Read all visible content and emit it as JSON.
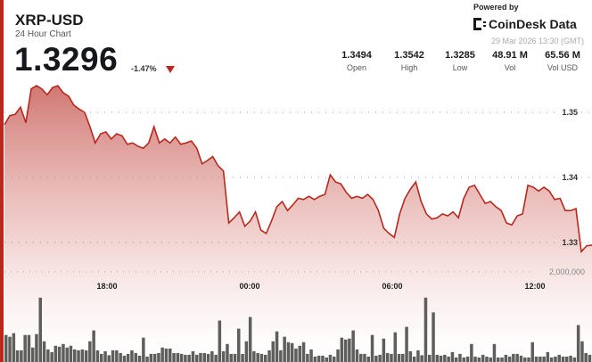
{
  "header": {
    "title": "XRP-USD",
    "subtitle": "24 Hour Chart",
    "price": "1.3296",
    "change": "-1.47%",
    "direction": "down"
  },
  "branding": {
    "powered_by": "Powered by",
    "name": "CoinDesk Data",
    "timestamp": "29 Mar 2026 13:30 (GMT)"
  },
  "stats": [
    {
      "value": "1.3494",
      "label": "Open"
    },
    {
      "value": "1.3542",
      "label": "High"
    },
    {
      "value": "1.3285",
      "label": "Low"
    },
    {
      "value": "48.91 M",
      "label": "Vol"
    },
    {
      "value": "65.56 M",
      "label": "Vol USD"
    }
  ],
  "colors": {
    "accent": "#b8281d",
    "line": "#b8281d",
    "fill_top": "#c9605a",
    "volume": "#5e5e5a"
  },
  "chart_data": {
    "type": "area",
    "x_ticks": [
      "18:00",
      "00:00",
      "06:00",
      "12:00"
    ],
    "y_ticks": [
      1.35,
      1.34,
      1.33
    ],
    "ylim": [
      1.3248,
      1.3672
    ],
    "grid": true,
    "price": [
      1.3481,
      1.3495,
      1.3497,
      1.3508,
      1.3484,
      1.3536,
      1.3541,
      1.3536,
      1.3527,
      1.3538,
      1.3541,
      1.353,
      1.3525,
      1.3511,
      1.3505,
      1.35,
      1.3478,
      1.3453,
      1.3467,
      1.347,
      1.3459,
      1.3467,
      1.3464,
      1.3451,
      1.3453,
      1.3448,
      1.3445,
      1.3453,
      1.3478,
      1.3453,
      1.3459,
      1.3453,
      1.3462,
      1.3451,
      1.3453,
      1.3456,
      1.3445,
      1.3421,
      1.3426,
      1.3432,
      1.3418,
      1.341,
      1.333,
      1.3338,
      1.3347,
      1.3325,
      1.3333,
      1.3347,
      1.3319,
      1.3314,
      1.3333,
      1.3355,
      1.3363,
      1.3349,
      1.3358,
      1.3368,
      1.3366,
      1.3371,
      1.3366,
      1.3371,
      1.3374,
      1.3404,
      1.3393,
      1.339,
      1.3377,
      1.3368,
      1.3371,
      1.3368,
      1.3374,
      1.3366,
      1.3349,
      1.3322,
      1.3314,
      1.3308,
      1.3344,
      1.3368,
      1.3382,
      1.3393,
      1.3363,
      1.3344,
      1.3336,
      1.3338,
      1.3344,
      1.3341,
      1.3347,
      1.3338,
      1.3368,
      1.3385,
      1.3388,
      1.3374,
      1.336,
      1.3363,
      1.3355,
      1.3349,
      1.333,
      1.3327,
      1.3341,
      1.3344,
      1.3388,
      1.3385,
      1.3379,
      1.3385,
      1.3379,
      1.3366,
      1.3368,
      1.3349,
      1.3349,
      1.3352,
      1.3286,
      1.3295,
      1.3296
    ],
    "volume_label": "2,000,000",
    "volume_gridline": 2000000,
    "volume": [
      600000,
      560000,
      640000,
      260000,
      260000,
      600000,
      600000,
      320000,
      620000,
      1430000,
      460000,
      280000,
      220000,
      360000,
      340000,
      400000,
      320000,
      360000,
      280000,
      260000,
      280000,
      260000,
      460000,
      700000,
      260000,
      180000,
      240000,
      150000,
      260000,
      260000,
      200000,
      140000,
      180000,
      260000,
      200000,
      140000,
      540000,
      120000,
      180000,
      180000,
      200000,
      320000,
      300000,
      300000,
      200000,
      200000,
      180000,
      160000,
      160000,
      240000,
      160000,
      200000,
      200000,
      180000,
      240000,
      160000,
      920000,
      240000,
      400000,
      180000,
      180000,
      740000,
      180000,
      460000,
      1000000,
      240000,
      200000,
      180000,
      160000,
      260000,
      460000,
      680000,
      260000,
      560000,
      440000,
      420000,
      300000,
      360000,
      440000,
      180000,
      280000,
      120000,
      140000,
      140000,
      100000,
      160000,
      120000,
      280000,
      540000,
      500000,
      520000,
      700000,
      280000,
      180000,
      180000,
      120000,
      600000,
      140000,
      160000,
      520000,
      200000,
      180000,
      660000,
      180000,
      180000,
      780000,
      240000,
      120000,
      260000,
      150000,
      1430000,
      160000,
      1100000,
      160000,
      140000,
      160000,
      120000,
      220000,
      100000,
      180000,
      100000,
      120000,
      400000,
      120000,
      100000,
      160000,
      120000,
      100000,
      400000,
      100000,
      100000,
      160000,
      120000,
      180000,
      180000,
      140000,
      100000,
      100000,
      440000,
      120000,
      120000,
      120000,
      220000,
      100000,
      120000,
      160000,
      120000,
      120000,
      140000,
      100000,
      820000,
      460000,
      200000,
      160000
    ]
  }
}
